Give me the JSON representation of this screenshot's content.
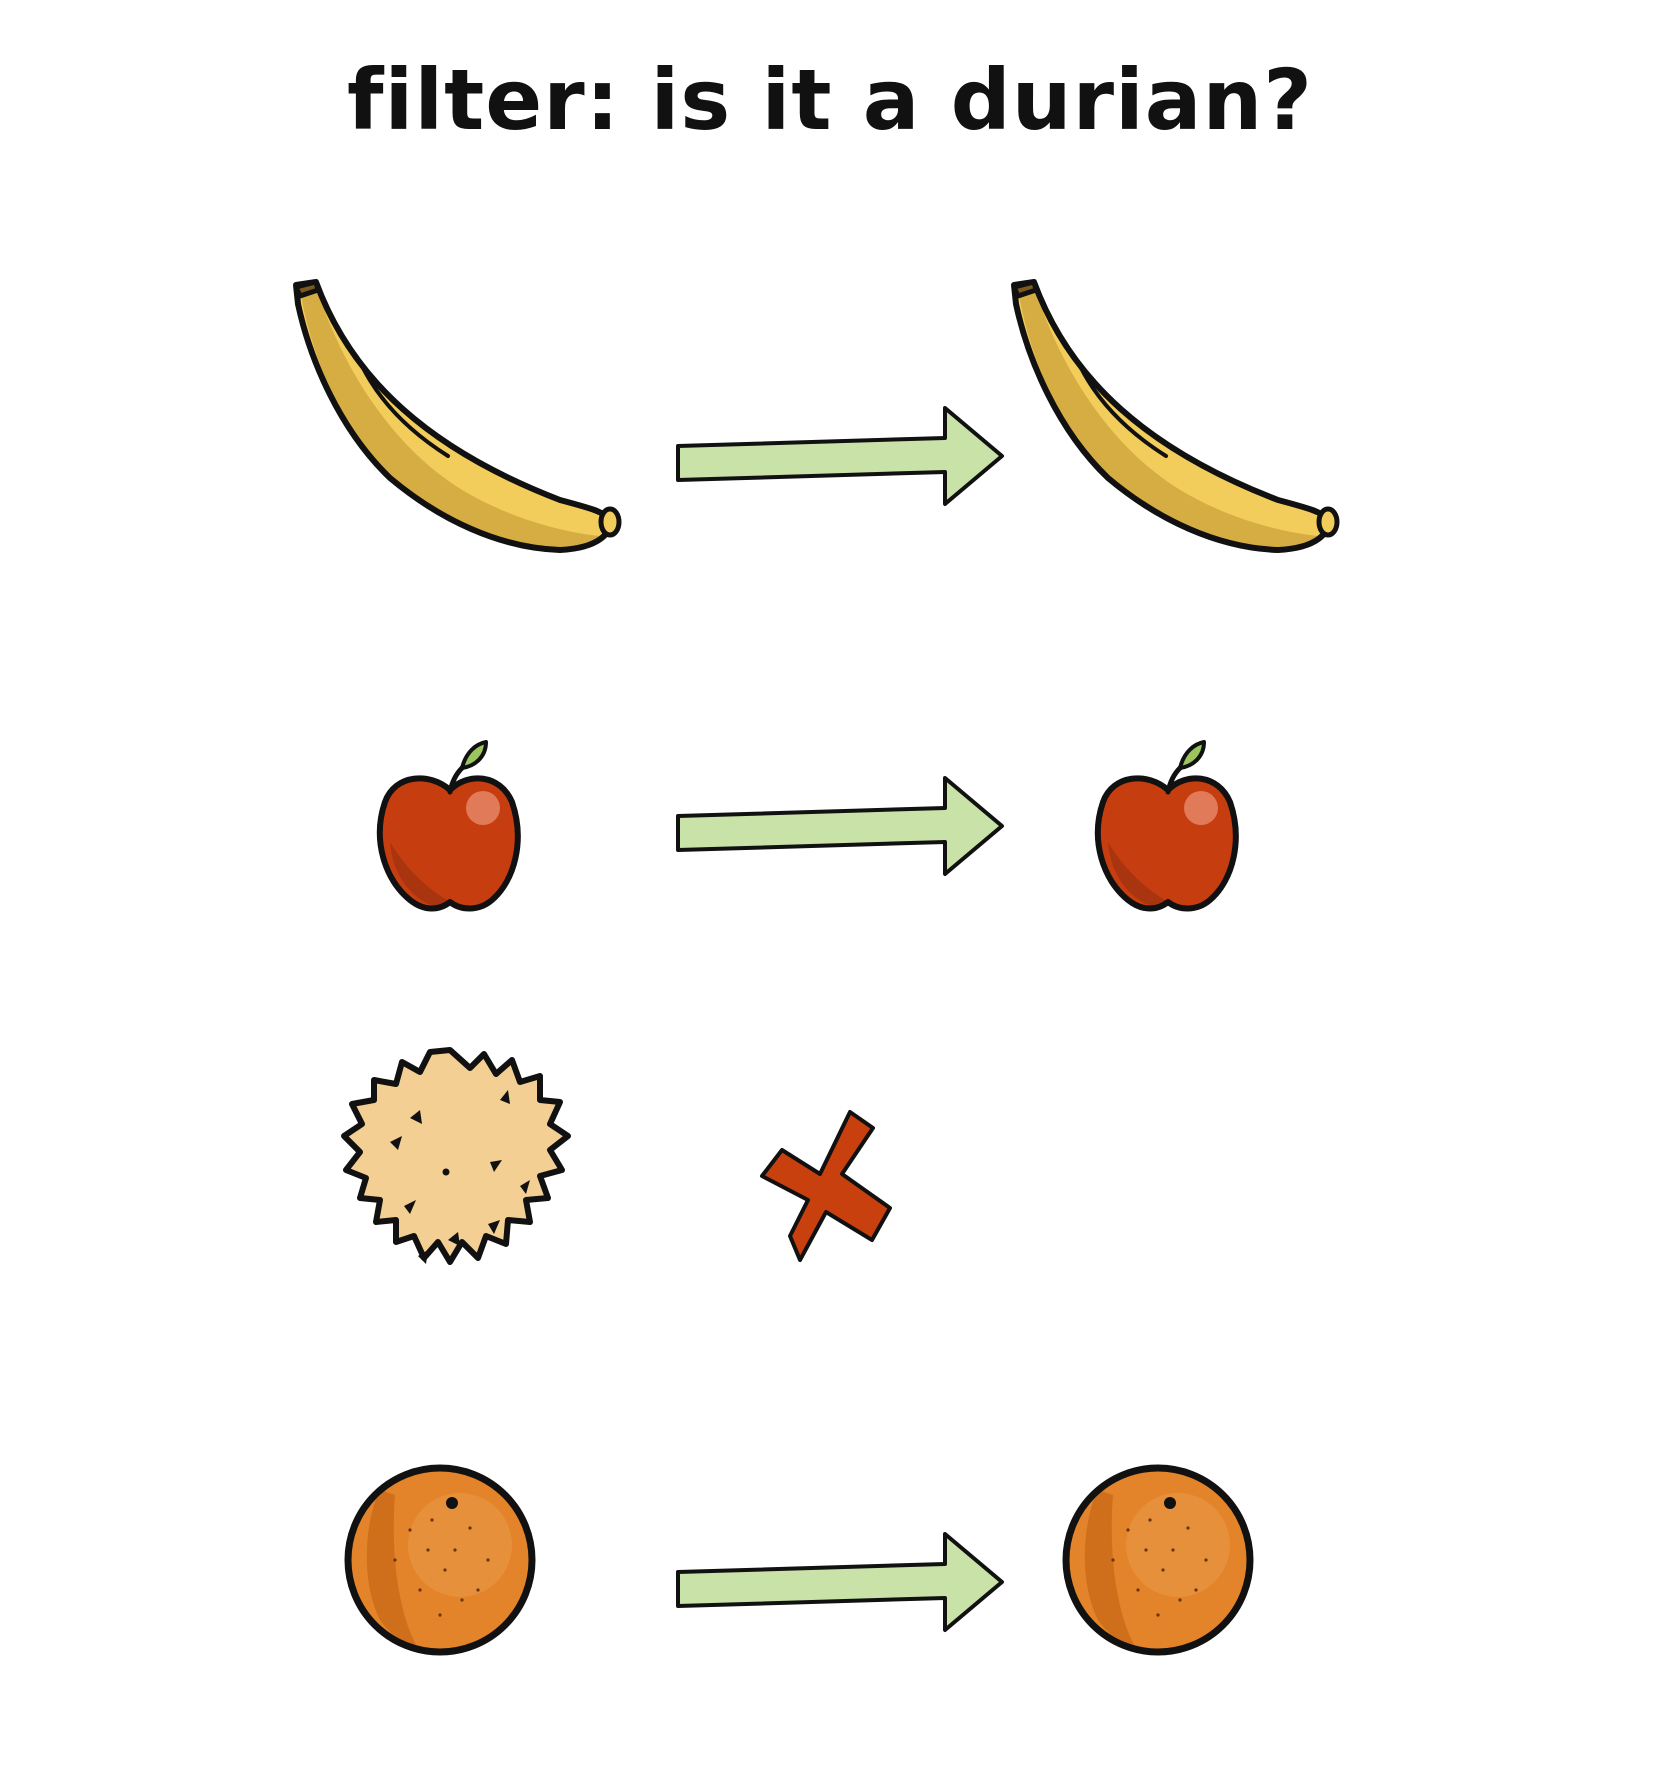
{
  "title": "filter: is it a durian?",
  "colors": {
    "outline": "#111111",
    "arrow_fill": "#c8e2a8",
    "reject_fill": "#c8400e",
    "banana_light": "#f3cd5c",
    "banana_dark": "#d6ad42",
    "apple_fill": "#c63e10",
    "apple_shade": "#a93510",
    "apple_highlight": "#e07a58",
    "apple_leaf": "#9cc560",
    "durian_fill": "#f3cf93",
    "orange_fill": "#e3832a",
    "orange_shade": "#cf6f1c",
    "orange_highlight": "#eb9a48"
  },
  "rows": [
    {
      "input": "banana",
      "result": "pass",
      "output": "banana"
    },
    {
      "input": "apple",
      "result": "pass",
      "output": "apple"
    },
    {
      "input": "durian",
      "result": "reject",
      "output": ""
    },
    {
      "input": "orange",
      "result": "pass",
      "output": "orange"
    }
  ],
  "icons": {
    "pass": "right-arrow-icon",
    "reject": "cross-icon"
  }
}
